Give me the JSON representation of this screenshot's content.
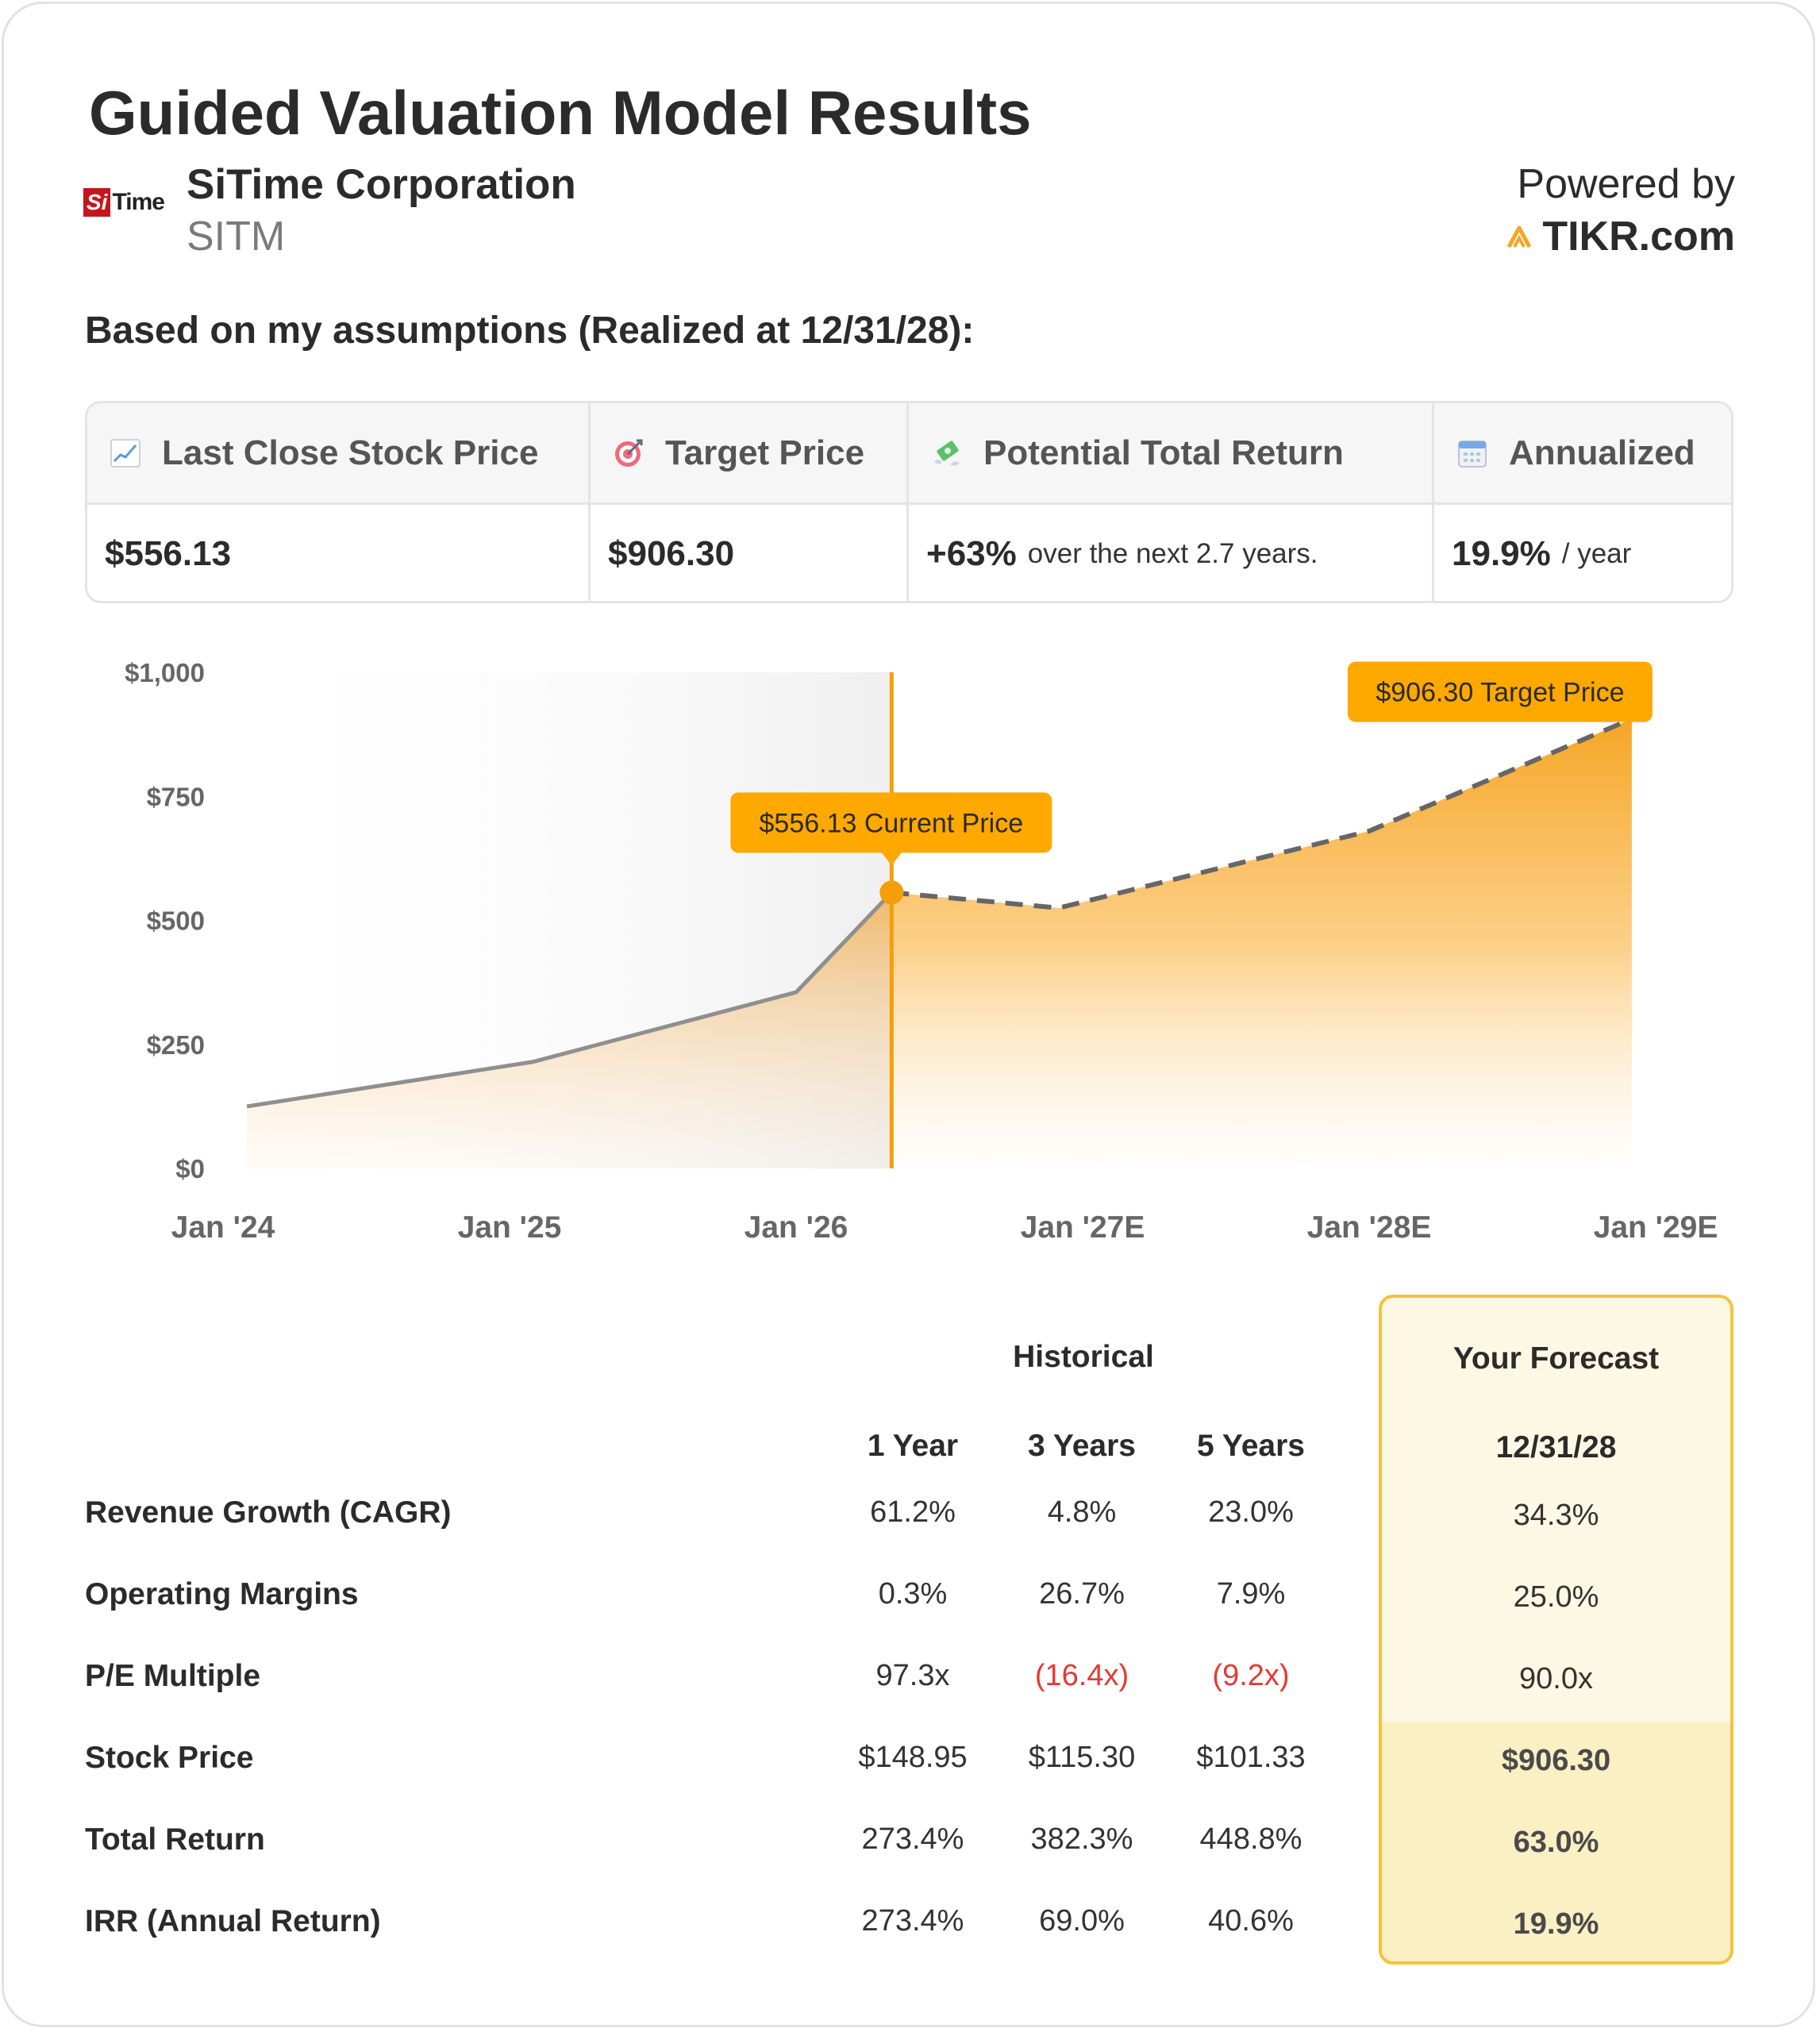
{
  "title": "Guided Valuation Model Results",
  "company": {
    "name": "SiTime Corporation",
    "ticker": "SITM",
    "logo_text_a": "Si",
    "logo_text_b": "Time",
    "brand_color": "#c4161c"
  },
  "powered": {
    "label": "Powered by",
    "brand": "TIKR.com",
    "icon": "tikr-logo-icon"
  },
  "assumptions_text": "Based on my assumptions (Realized at 12/31/28):",
  "summary": {
    "headers": [
      {
        "label": "Last Close Stock Price",
        "icon": "chart-increasing-icon"
      },
      {
        "label": "Target Price",
        "icon": "target-icon"
      },
      {
        "label": "Potential Total Return",
        "icon": "money-with-wings-icon"
      },
      {
        "label": "Annualized",
        "icon": "calendar-icon"
      }
    ],
    "last_close": "$556.13",
    "target": "$906.30",
    "total_return_bold": "+63%",
    "total_return_rest": "over the next 2.7 years.",
    "annualized_bold": "19.9%",
    "annualized_rest": "/ year"
  },
  "chart_data": {
    "type": "area",
    "x_tick_labels": [
      "Jan '24",
      "Jan '25",
      "Jan '26",
      "Jan '27E",
      "Jan '28E",
      "Jan '29E"
    ],
    "y_tick_labels": [
      "$0",
      "$250",
      "$500",
      "$750",
      "$1,000"
    ],
    "ylim": [
      0,
      1000
    ],
    "xlim": [
      "2024-01",
      "2029-01"
    ],
    "series": [
      {
        "kind": "historical",
        "points": [
          {
            "x": "2024-02",
            "y": 125
          },
          {
            "x": "2025-02",
            "y": 215
          },
          {
            "x": "2026-01",
            "y": 355
          },
          {
            "x": "2026-05",
            "y": 556.13
          }
        ]
      },
      {
        "kind": "forecast",
        "points": [
          {
            "x": "2026-05",
            "y": 556.13
          },
          {
            "x": "2026-12",
            "y": 525
          },
          {
            "x": "2028-01",
            "y": 680
          },
          {
            "x": "2028-12",
            "y": 906.3
          }
        ]
      }
    ],
    "current_marker_x": "2026-05",
    "annotations": [
      {
        "id": "current",
        "text": "$556.13 Current Price",
        "x": "2026-05",
        "y": 556.13
      },
      {
        "id": "target",
        "text": "$906.30 Target Price",
        "x": "2028-12",
        "y": 906.3
      }
    ],
    "colors": {
      "accent": "#f59e0b",
      "hist_line": "#8f8f8f",
      "forecast_line": "#666666",
      "label_bg": "#ffa800"
    }
  },
  "table": {
    "group_historical": "Historical",
    "group_forecast": "Your Forecast",
    "col_headers": [
      "1 Year",
      "3 Years",
      "5 Years"
    ],
    "forecast_header": "12/31/28",
    "rows": [
      {
        "label": "Revenue Growth (CAGR)",
        "values": [
          "61.2%",
          "4.8%",
          "23.0%"
        ],
        "forecast": "34.3%"
      },
      {
        "label": "Operating Margins",
        "values": [
          "0.3%",
          "26.7%",
          "7.9%"
        ],
        "forecast": "25.0%"
      },
      {
        "label": "P/E Multiple",
        "values": [
          "97.3x",
          "(16.4x)",
          "(9.2x)"
        ],
        "forecast": "90.0x"
      },
      {
        "label": "Stock Price",
        "values": [
          "$148.95",
          "$115.30",
          "$101.33"
        ],
        "forecast": "$906.30"
      },
      {
        "label": "Total Return",
        "values": [
          "273.4%",
          "382.3%",
          "448.8%"
        ],
        "forecast": "63.0%"
      },
      {
        "label": "IRR (Annual Return)",
        "values": [
          "273.4%",
          "69.0%",
          "40.6%"
        ],
        "forecast": "19.9%"
      }
    ]
  }
}
